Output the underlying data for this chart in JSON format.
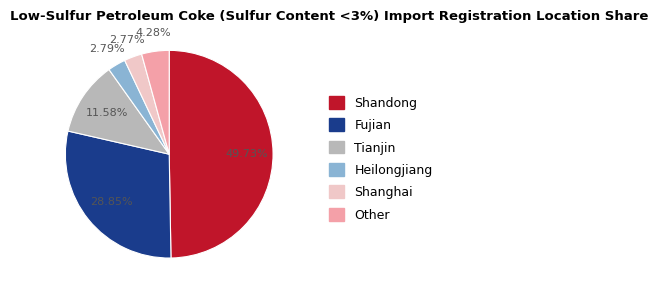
{
  "title": "Low-Sulfur Petroleum Coke (Sulfur Content <3%) Import Registration Location Share",
  "labels": [
    "Shandong",
    "Fujian",
    "Tianjin",
    "Heilongjiang",
    "Shanghai",
    "Other"
  ],
  "values": [
    49.73,
    28.85,
    11.58,
    2.79,
    2.77,
    4.28
  ],
  "colors": [
    "#c0152a",
    "#1a3c8c",
    "#b8b8b8",
    "#8ab4d4",
    "#f0c8c8",
    "#f4a0a8"
  ],
  "pct_labels": [
    "49.73%",
    "28.85%",
    "11.58%",
    "2.79%",
    "2.77%",
    "4.28%"
  ],
  "label_distances": [
    0.75,
    0.72,
    0.72,
    1.18,
    1.18,
    1.18
  ],
  "title_fontsize": 9.5,
  "legend_fontsize": 9
}
